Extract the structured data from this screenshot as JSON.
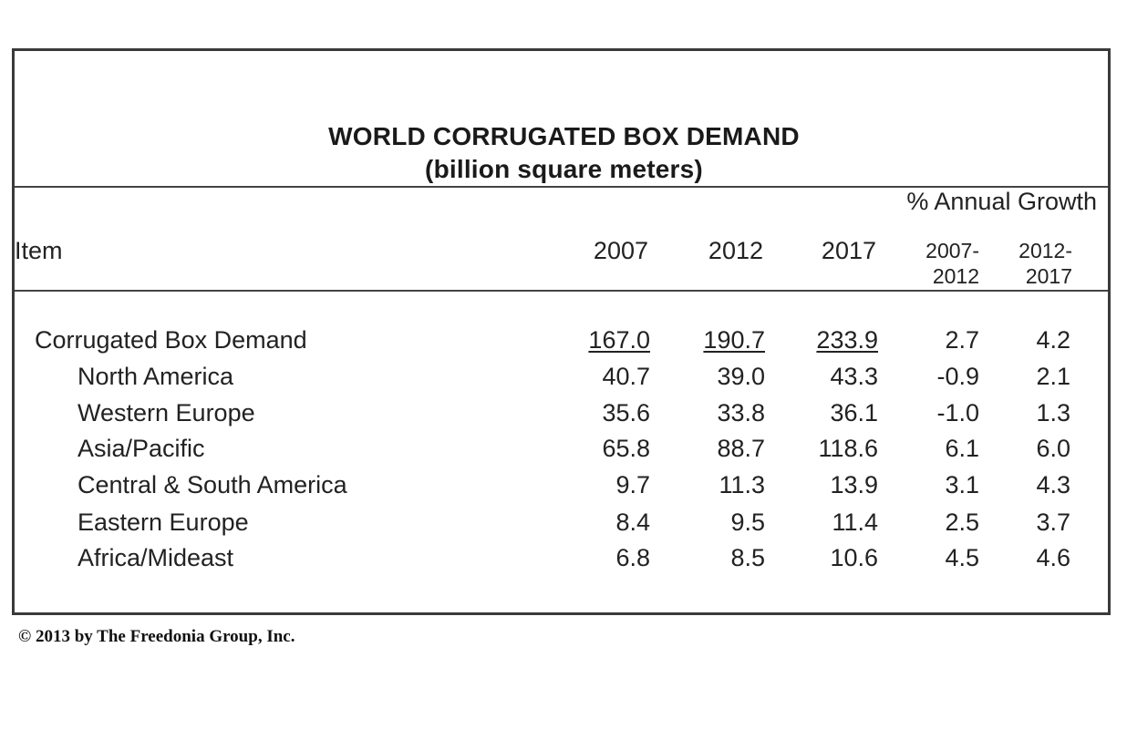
{
  "table": {
    "title": "WORLD CORRUGATED BOX DEMAND",
    "subtitle": "(billion square meters)",
    "growth_header": "% Annual Growth",
    "item_header": "Item",
    "year_headers": [
      "2007",
      "2012",
      "2017"
    ],
    "range_headers": [
      {
        "start": "2007-",
        "end": "2012"
      },
      {
        "start": "2012-",
        "end": "2017"
      }
    ],
    "rows": [
      {
        "label": "Corrugated Box Demand",
        "values": [
          "167.0",
          "190.7",
          "233.9",
          "2.7",
          "4.2"
        ]
      },
      {
        "label": "North America",
        "values": [
          "40.7",
          "39.0",
          "43.3",
          "-0.9",
          "2.1"
        ]
      },
      {
        "label": "Western Europe",
        "values": [
          "35.6",
          "33.8",
          "36.1",
          "-1.0",
          "1.3"
        ]
      },
      {
        "label": "Asia/Pacific",
        "values": [
          "65.8",
          "88.7",
          "118.6",
          "6.1",
          "6.0"
        ]
      },
      {
        "label": "Central & South America",
        "values": [
          "9.7",
          "11.3",
          "13.9",
          "3.1",
          "4.3"
        ]
      },
      {
        "label": "Eastern Europe",
        "values": [
          "8.4",
          "9.5",
          "11.4",
          "2.5",
          "3.7"
        ]
      },
      {
        "label": "Africa/Mideast",
        "values": [
          "6.8",
          "8.5",
          "10.6",
          "4.5",
          "4.6"
        ]
      }
    ]
  },
  "copyright": "© 2013 by The Freedonia Group, Inc."
}
